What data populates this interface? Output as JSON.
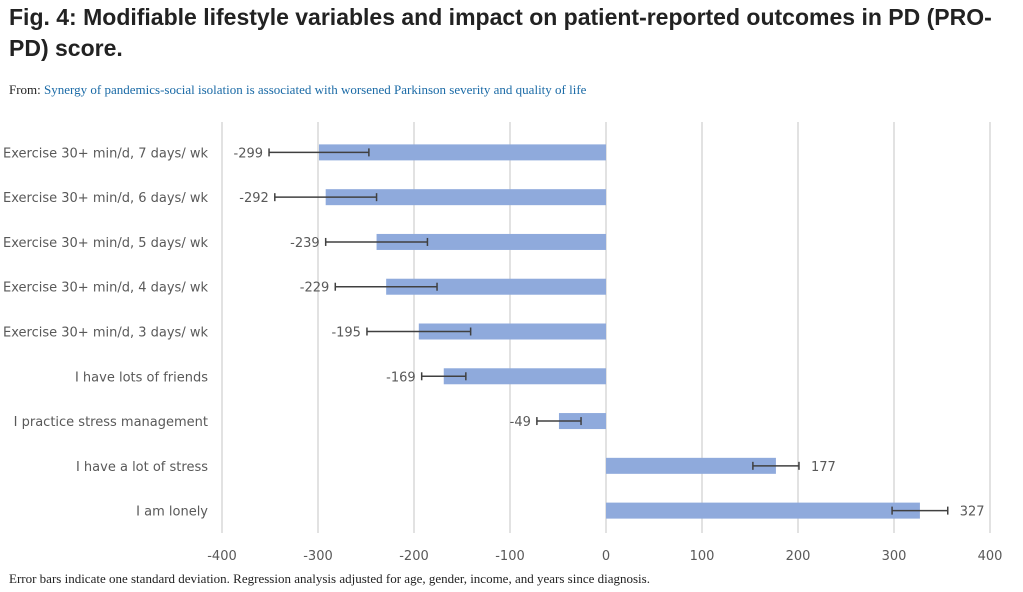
{
  "figure": {
    "title": "Fig. 4: Modifiable lifestyle variables and impact on patient-reported outcomes in PD (PRO-PD) score.",
    "from_label": "From: ",
    "from_link": "Synergy of pandemics-social isolation is associated with worsened Parkinson severity and quality of life",
    "caption": "Error bars indicate one standard deviation. Regression analysis adjusted for age, gender, income, and years since diagnosis."
  },
  "colors": {
    "bar": "#8faadc",
    "error_bar": "#404040",
    "grid": "#d9d9d9",
    "text": "#595959"
  },
  "chart_data": {
    "type": "bar",
    "orientation": "horizontal",
    "title": "",
    "xlabel": "",
    "ylabel": "",
    "xlim": [
      -400,
      400
    ],
    "xticks": [
      -400,
      -300,
      -200,
      -100,
      0,
      100,
      200,
      300,
      400
    ],
    "grid": true,
    "legend": "none",
    "categories": [
      "Exercise 30+ min/d, 7 days/ wk",
      "Exercise 30+ min/d, 6 days/ wk",
      "Exercise 30+ min/d, 5 days/ wk",
      "Exercise 30+ min/d, 4 days/ wk",
      "Exercise 30+ min/d, 3 days/ wk",
      "I have lots of friends",
      "I practice stress management",
      "I have a lot of stress",
      "I am lonely"
    ],
    "values": [
      -299,
      -292,
      -239,
      -229,
      -195,
      -169,
      -49,
      177,
      327
    ],
    "error_sd": [
      52,
      53,
      53,
      53,
      54,
      23,
      23,
      24,
      29
    ],
    "data_labels": [
      "-299",
      "-292",
      "-239",
      "-229",
      "-195",
      "-169",
      "-49",
      "177",
      "327"
    ]
  }
}
